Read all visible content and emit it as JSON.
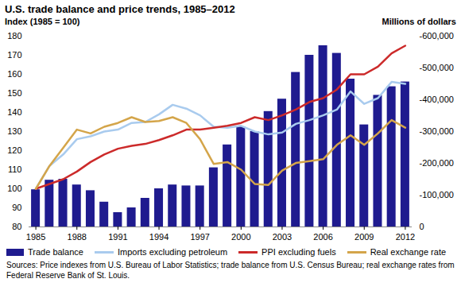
{
  "chart_data": {
    "type": "bar",
    "title": "U.S. trade balance and price trends, 1985–2012",
    "ylabel": "Index (1985 = 100)",
    "y2label": "Millions of dollars",
    "x": [
      1985,
      1986,
      1987,
      1988,
      1989,
      1990,
      1991,
      1992,
      1993,
      1994,
      1995,
      1996,
      1997,
      1998,
      1999,
      2000,
      2001,
      2002,
      2003,
      2004,
      2005,
      2006,
      2007,
      2008,
      2009,
      2010,
      2011,
      2012
    ],
    "xlim": [
      1984.5,
      2012.5
    ],
    "xticks": [
      1985,
      1988,
      1991,
      1994,
      1997,
      2000,
      2003,
      2006,
      2009,
      2012
    ],
    "ylim": [
      80,
      180
    ],
    "yticks": [
      80,
      90,
      100,
      110,
      120,
      130,
      140,
      150,
      160,
      170,
      180
    ],
    "y2lim": [
      0,
      -600000
    ],
    "y2ticks": [
      0,
      {
        "value": -100000,
        "label": "-100,000"
      },
      {
        "value": -200000,
        "label": "-200,000"
      },
      {
        "value": -300000,
        "label": "-300,000"
      },
      {
        "value": -400000,
        "label": "-400,000"
      },
      {
        "value": -500000,
        "label": "-500,000"
      },
      {
        "value": -600000,
        "label": "-600,000"
      }
    ],
    "grid": false,
    "legend": "bottom",
    "series": [
      {
        "name": "Trade balance",
        "type": "bar",
        "axis": "y2",
        "color": "#1f1b8f",
        "values": [
          -117000,
          -147000,
          -150000,
          -132000,
          -114000,
          -78000,
          -45000,
          -60000,
          -90000,
          -120000,
          -132000,
          -129000,
          -129000,
          -186000,
          -258000,
          -315000,
          -300000,
          -363000,
          -402000,
          -486000,
          -540000,
          -570000,
          -546000,
          -465000,
          -321000,
          -414000,
          -441000,
          -456000
        ]
      },
      {
        "name": "Imports excluding petroleum",
        "type": "line",
        "color": "#a9cbee",
        "values": [
          100,
          112,
          118,
          126,
          127.5,
          130,
          131,
          134.5,
          135,
          139,
          144,
          142,
          138.5,
          132.5,
          132,
          133,
          130,
          128.5,
          129.5,
          134,
          136,
          138.5,
          141.5,
          151,
          144.5,
          147.5,
          156,
          155
        ]
      },
      {
        "name": "PPI excluding fuels",
        "type": "line",
        "color": "#cc2a2a",
        "values": [
          100,
          102.5,
          105,
          109,
          114,
          118,
          121,
          122.5,
          123.5,
          125.5,
          128,
          131,
          131,
          132,
          133,
          134.5,
          137.5,
          136,
          138.5,
          141.5,
          145.5,
          147.5,
          152,
          160,
          160,
          164,
          171,
          175
        ]
      },
      {
        "name": "Real exchange rate",
        "type": "line",
        "color": "#d4a54a",
        "values": [
          100,
          112,
          121.5,
          131,
          129,
          132.5,
          134.5,
          137.5,
          135,
          135.5,
          137.5,
          134.5,
          126,
          113,
          114,
          110,
          102.5,
          102,
          109.5,
          113.5,
          114.5,
          115.5,
          123,
          128,
          123,
          129,
          136,
          132
        ]
      }
    ],
    "source": "Sources: Price indexes from U.S. Bureau of Labor Statistics; trade balance from U.S. Census Bureau; real exchange rates from Federal Reserve Bank of St. Louis."
  }
}
